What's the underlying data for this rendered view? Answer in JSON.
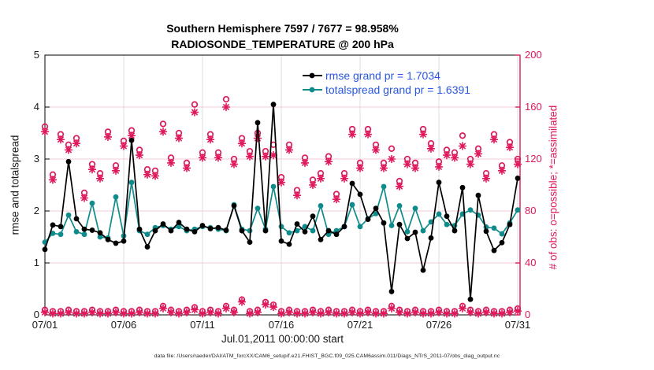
{
  "figure": {
    "title_line1": "Southern Hemisphere 7597 / 7677 = 98.958%",
    "title_line2": "RADIOSONDE_TEMPERATURE @ 200 hPa",
    "xlabel": "Jul.01,2011 00:00:00 start",
    "ylabel_left": "rmse and totalspread",
    "ylabel_right": "# of obs: o=possible; *=assimilated",
    "datafile_note": "data file: /Users/raeder/DAI/ATM_forcXX/CAM6_setup/f.e21.FHIST_BGC.f09_025.CAM6assim.011/Diags_NTrS_2011-07/obs_diag_output.nc"
  },
  "legend": {
    "rmse_label": "rmse grand pr = 1.7034",
    "totalspread_label": "totalspread grand pr = 1.6391",
    "text_color": "#2a57e2"
  },
  "colors": {
    "rmse": "#000000",
    "totalspread": "#0f8b8b",
    "obs_counts": "#de185b",
    "grid_horizontal": "#f6cbd8",
    "grid_vertical": "#dcdcdc",
    "axis_text": "#1a1a1a"
  },
  "chart_data": {
    "type": "line",
    "title": "Southern Hemisphere 7597 / 7677 = 98.958% | RADIOSONDE_TEMPERATURE @ 200 hPa",
    "xlabel": "Jul.01,2011 00:00:00 start",
    "x_tick_labels": [
      "07/01",
      "07/06",
      "07/11",
      "07/16",
      "07/21",
      "07/26",
      "07/31"
    ],
    "x_start": "07/01 00:00Z",
    "x_interval_hours": 12,
    "n_points": 61,
    "left_axis": {
      "label": "rmse and totalspread",
      "ticks": [
        0,
        1,
        2,
        3,
        4,
        5
      ],
      "range": [
        0,
        5
      ]
    },
    "right_axis": {
      "label": "# of obs: o=possible; *=assimilated",
      "ticks": [
        0,
        40,
        80,
        120,
        160,
        200
      ],
      "range": [
        0,
        200
      ]
    },
    "grid": "on",
    "legend_position": "top-right-inside",
    "stats": {
      "possible_total": 7677,
      "assimilated_total": 7597,
      "assimilated_pct": 98.958,
      "rmse_grand_prior": 1.7034,
      "totalspread_grand_prior": 1.6391
    },
    "series": [
      {
        "name": "rmse",
        "axis": "left",
        "marker": "dot-line",
        "color": "#000000",
        "values": [
          1.26,
          1.73,
          1.7,
          2.95,
          1.85,
          1.65,
          1.63,
          1.58,
          1.45,
          1.38,
          1.42,
          3.36,
          1.65,
          1.31,
          1.62,
          1.75,
          1.62,
          1.78,
          1.65,
          1.6,
          1.72,
          1.66,
          1.68,
          1.63,
          2.1,
          1.62,
          1.4,
          3.7,
          1.62,
          4.05,
          1.42,
          1.36,
          1.75,
          1.6,
          1.9,
          1.45,
          1.62,
          1.55,
          1.7,
          2.53,
          2.32,
          1.84,
          2.05,
          1.77,
          0.45,
          1.74,
          1.47,
          1.59,
          0.86,
          1.48,
          2.55,
          1.9,
          1.62,
          2.45,
          0.3,
          2.3,
          1.61,
          1.24,
          1.39,
          1.74,
          2.63
        ]
      },
      {
        "name": "totalspread",
        "axis": "left",
        "marker": "dot-line",
        "color": "#0f8b8b",
        "values": [
          1.4,
          1.57,
          1.55,
          1.92,
          1.6,
          1.55,
          2.15,
          1.5,
          1.48,
          2.27,
          1.52,
          2.55,
          1.62,
          1.55,
          1.68,
          1.72,
          1.65,
          1.7,
          1.62,
          1.65,
          1.7,
          1.68,
          1.65,
          1.62,
          2.12,
          1.65,
          1.62,
          2.05,
          1.65,
          2.47,
          1.7,
          1.58,
          1.62,
          1.7,
          1.62,
          2.1,
          1.55,
          1.62,
          1.7,
          2.12,
          1.7,
          1.85,
          1.95,
          2.47,
          1.72,
          2.1,
          1.6,
          2.05,
          1.62,
          1.79,
          1.94,
          1.74,
          1.72,
          1.94,
          2.02,
          1.92,
          1.69,
          1.67,
          1.56,
          1.77,
          2.02
        ]
      },
      {
        "name": "observations_possible",
        "axis": "right",
        "marker": "o",
        "color": "#de185b",
        "values": [
          145,
          108,
          139,
          131,
          136,
          94,
          116,
          109,
          141,
          115,
          134,
          142,
          127,
          112,
          111,
          147,
          121,
          140,
          117,
          162,
          125,
          139,
          125,
          166,
          120,
          136,
          126,
          140,
          126,
          131,
          106,
          131,
          96,
          121,
          104,
          109,
          122,
          93,
          109,
          143,
          117,
          143,
          131,
          117,
          128,
          103,
          120,
          117,
          143,
          132,
          118,
          127,
          125,
          138,
          120,
          128,
          109,
          139,
          115,
          133,
          120
        ]
      },
      {
        "name": "observations_assimilated",
        "axis": "right",
        "marker": "asterisk",
        "color": "#de185b",
        "values": [
          141,
          104,
          135,
          127,
          132,
          90,
          112,
          105,
          137,
          111,
          130,
          138,
          123,
          108,
          107,
          141,
          117,
          136,
          113,
          156,
          121,
          135,
          121,
          160,
          116,
          132,
          122,
          136,
          122,
          123,
          102,
          127,
          92,
          117,
          100,
          105,
          118,
          89,
          105,
          139,
          113,
          139,
          127,
          113,
          120,
          99,
          116,
          113,
          139,
          128,
          114,
          123,
          121,
          130,
          116,
          124,
          105,
          135,
          111,
          129,
          116
        ]
      },
      {
        "name": "observations_rejected_near_zero",
        "axis": "right",
        "marker": "o-asterisk",
        "color": "#de185b",
        "values": [
          2,
          1,
          1,
          2,
          1,
          1,
          2,
          1,
          1,
          2,
          1,
          1,
          2,
          1,
          1,
          5,
          2,
          1,
          2,
          4,
          1,
          2,
          1,
          5,
          2,
          10,
          1,
          2,
          8,
          6,
          1,
          2,
          1,
          1,
          2,
          1,
          2,
          1,
          1,
          2,
          1,
          2,
          1,
          1,
          5,
          2,
          1,
          2,
          1,
          1,
          2,
          1,
          1,
          5,
          2,
          1,
          2,
          1,
          1,
          2,
          3
        ]
      }
    ]
  }
}
